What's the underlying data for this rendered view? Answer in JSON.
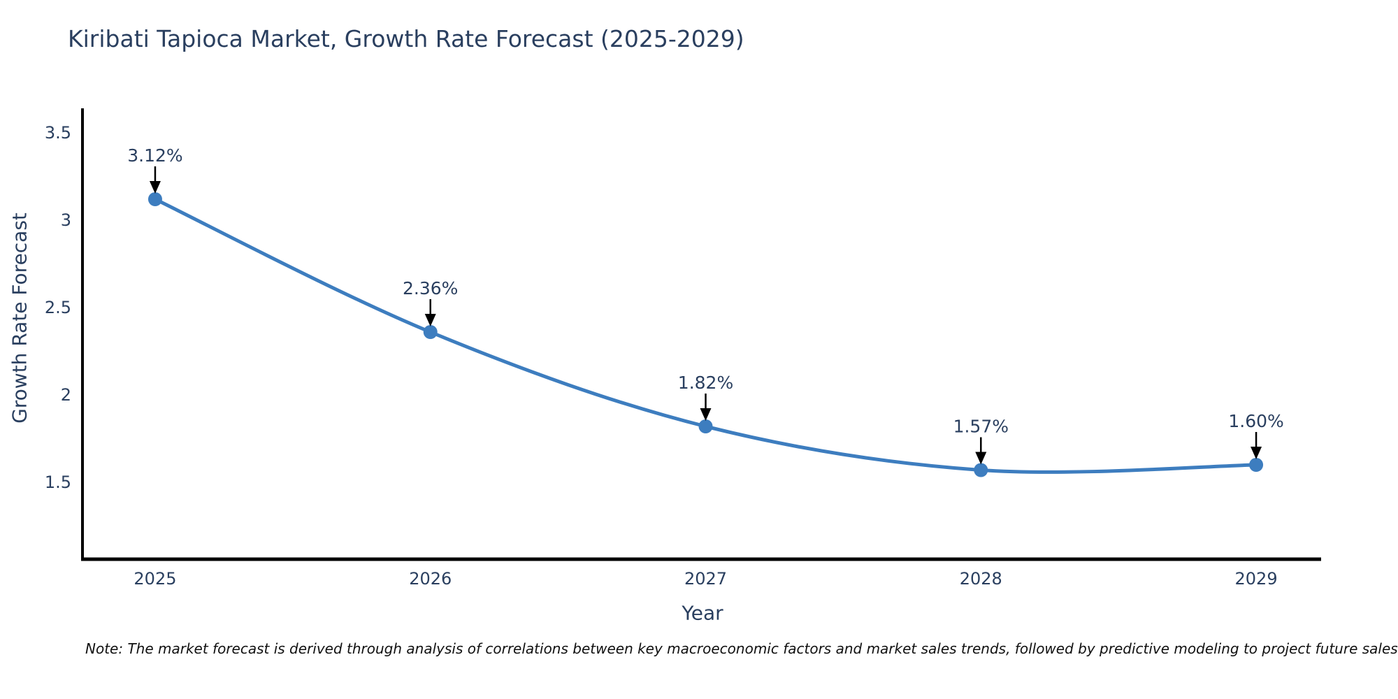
{
  "chart_data": {
    "type": "line",
    "title": "Kiribati Tapioca Market, Growth Rate Forecast (2025-2029)",
    "xlabel": "Year",
    "ylabel": "Growth Rate Forecast",
    "x": [
      2025,
      2026,
      2027,
      2028,
      2029
    ],
    "values": [
      3.12,
      2.36,
      1.82,
      1.57,
      1.6
    ],
    "point_labels": [
      "3.12%",
      "2.36%",
      "1.82%",
      "1.57%",
      "1.60%"
    ],
    "xtick_labels": [
      "2025",
      "2026",
      "2027",
      "2028",
      "2029"
    ],
    "yticks": [
      1.5,
      2,
      2.5,
      3,
      3.5
    ],
    "ytick_labels": [
      "1.5",
      "2",
      "2.5",
      "3",
      "3.5"
    ],
    "ylim": [
      1.06,
      3.64
    ],
    "xlim": [
      2024.736,
      2029.236
    ],
    "line_shape": "spline",
    "grid": false,
    "legend": "none",
    "marker": "circle",
    "annotation_arrows": "down",
    "colors": {
      "line": "#3d7dbf",
      "marker": "#3d7dbf",
      "axis": "#000000",
      "text": "#2a3f5f",
      "annotation": "#2a3f5f",
      "note": "#111111"
    },
    "note": "Note: The market forecast is derived through analysis of correlations between key macroeconomic factors and market sales trends, followed by predictive modeling to project future sales"
  }
}
